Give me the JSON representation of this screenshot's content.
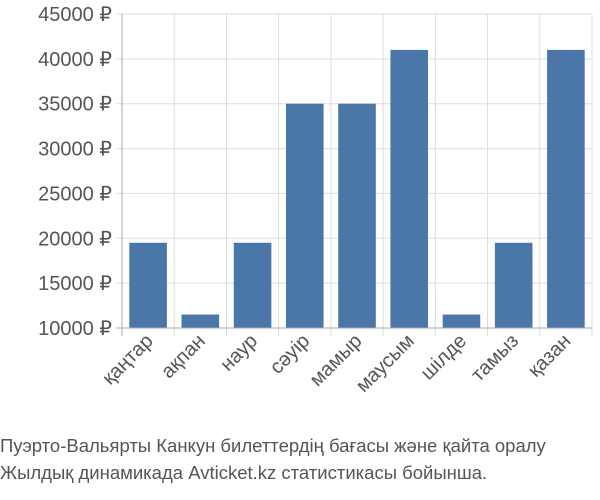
{
  "chart_data": {
    "type": "bar",
    "categories": [
      "қаңтар",
      "ақпан",
      "наур",
      "сәуір",
      "мамыр",
      "маусым",
      "шілде",
      "тамыз",
      "қазан"
    ],
    "values": [
      19500,
      11500,
      19500,
      35000,
      35000,
      41000,
      11500,
      19500,
      41000
    ],
    "y_ticks": [
      "10000 ₽",
      "15000 ₽",
      "20000 ₽",
      "25000 ₽",
      "30000 ₽",
      "35000 ₽",
      "40000 ₽",
      "45000 ₽"
    ],
    "ylim": [
      10000,
      45000
    ],
    "grid": true,
    "bar_color": "#4a76a8",
    "grid_color": "#dddddd",
    "axis_color": "#aaaaaa",
    "tick_text_color": "#555555"
  },
  "caption": {
    "line1": "Пуэрто-Вальярты Канкун билеттердің бағасы және қайта оралу",
    "line2": "Жылдық динамикада Avticket.kz статистикасы бойынша."
  }
}
